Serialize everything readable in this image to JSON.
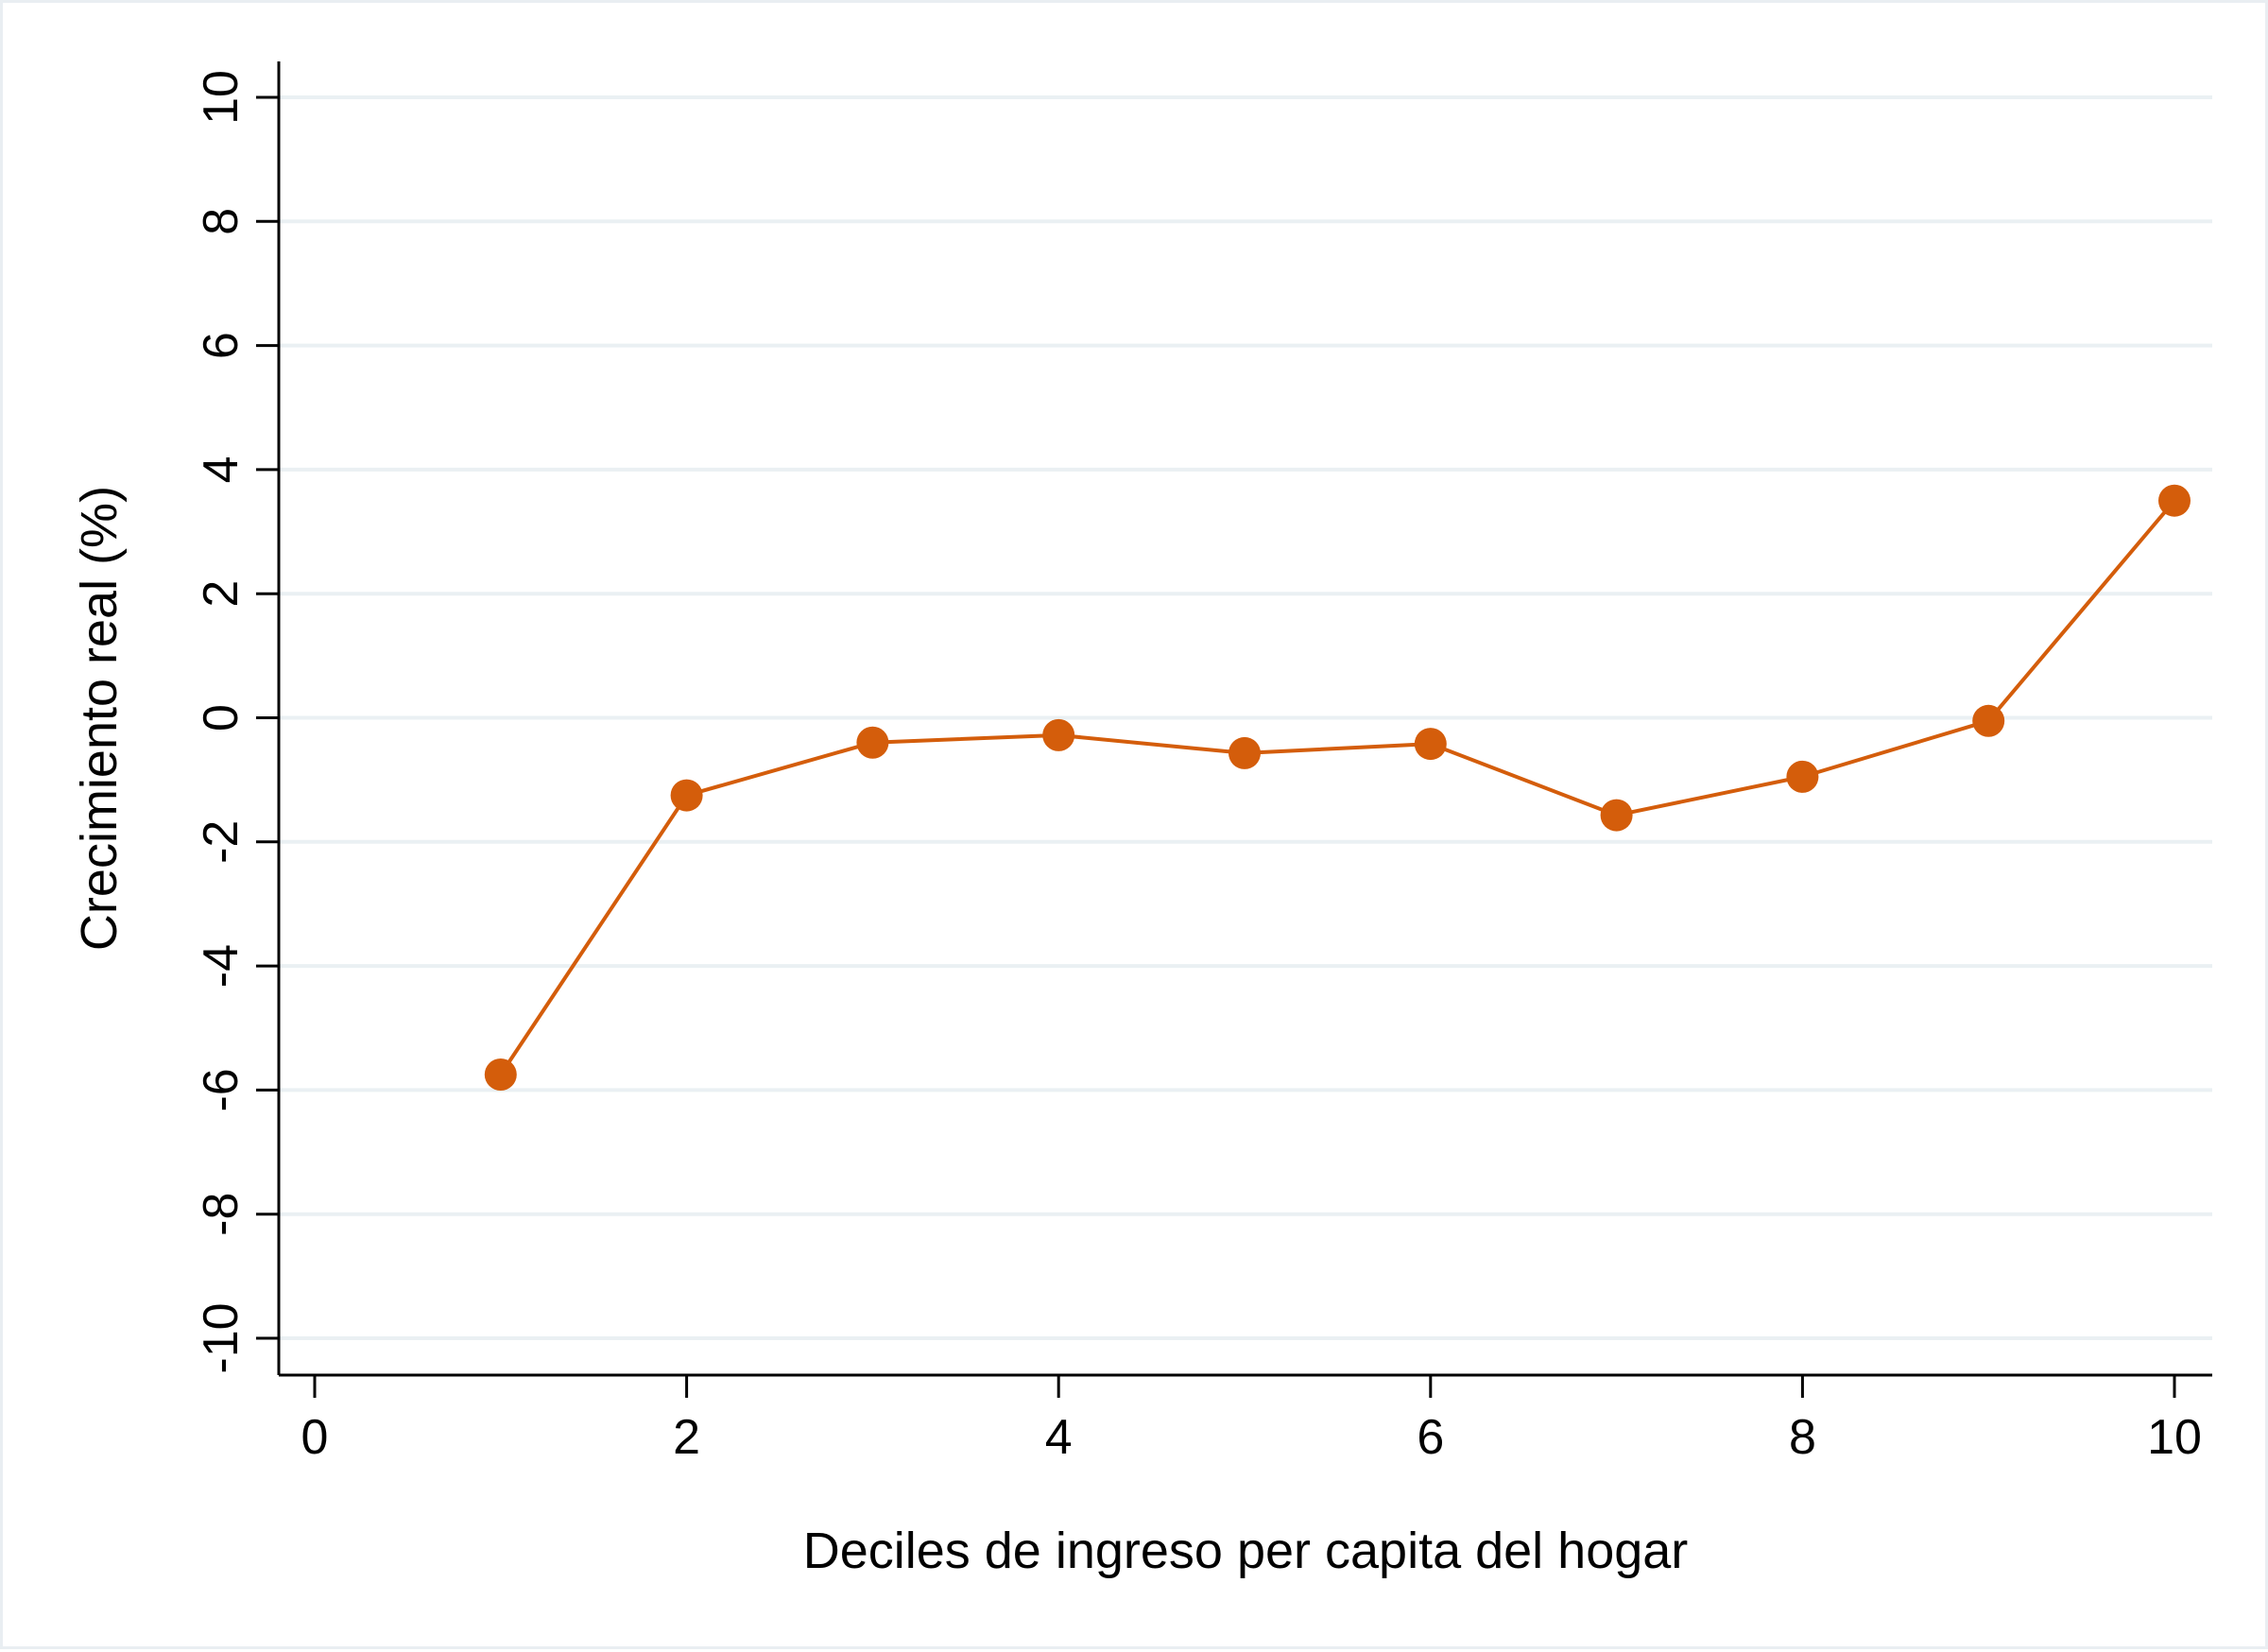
{
  "chart_data": {
    "type": "line",
    "title": "",
    "xlabel": "Deciles de ingreso per capita del hogar",
    "ylabel": "Crecimiento real (%)",
    "x": [
      1,
      2,
      3,
      4,
      5,
      6,
      7,
      8,
      9,
      10
    ],
    "series": [
      {
        "values": [
          -5.75,
          -1.25,
          -0.4,
          -0.28,
          -0.57,
          -0.42,
          -1.57,
          -0.95,
          -0.05,
          3.5
        ],
        "color": "#d45d0b"
      }
    ],
    "xlim": [
      0,
      10
    ],
    "ylim": [
      -10,
      10
    ],
    "xticks": [
      0,
      2,
      4,
      6,
      8,
      10
    ],
    "yticks": [
      -10,
      -8,
      -6,
      -4,
      -2,
      0,
      2,
      4,
      6,
      8,
      10
    ],
    "xtick_labels": [
      "0",
      "2",
      "4",
      "6",
      "8",
      "10"
    ],
    "ytick_labels": [
      "-10",
      "-8",
      "-6",
      "-4",
      "-2",
      "0",
      "2",
      "4",
      "6",
      "8",
      "10"
    ],
    "grid": "horizontal",
    "legend": "none"
  }
}
